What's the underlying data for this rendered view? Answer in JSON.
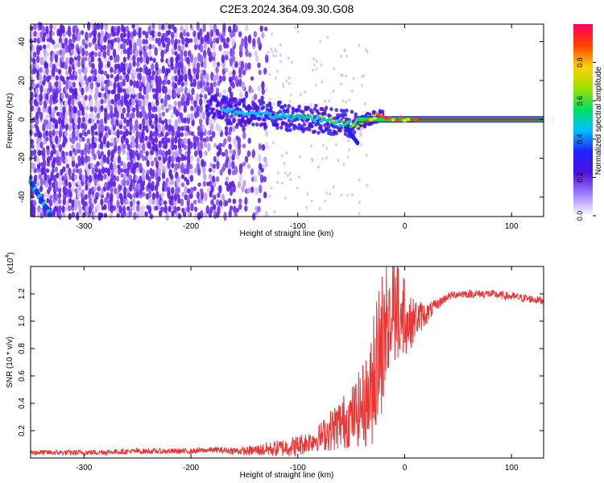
{
  "figure_title": "C2E3.2024.364.09.30.G08",
  "colors": {
    "snr_line": "#ee3333",
    "spectrogram_noise": "#5a17e6",
    "colormap": [
      "#ffffff",
      "#a080ff",
      "#5010e0",
      "#2020ff",
      "#00c0ff",
      "#00e060",
      "#a0e000",
      "#ffd000",
      "#ff4000",
      "#ff0060"
    ]
  },
  "chart_data": [
    {
      "type": "heatmap",
      "title": "C2E3.2024.364.09.30.G08",
      "xlabel": "Height of straight line (km)",
      "ylabel": "Frequency (Hz)",
      "xlim": [
        -350,
        130
      ],
      "ylim": [
        -50,
        49
      ],
      "x_ticks": [
        -300,
        -200,
        -100,
        0,
        100
      ],
      "y_ticks": [
        -40,
        -20,
        0,
        20,
        40
      ],
      "colorbar": {
        "label": "Normalized spectral amplitude",
        "range": [
          0,
          1
        ],
        "ticks": [
          "0.0",
          "0.2",
          "0.4",
          "0.6",
          "0.8"
        ],
        "tick_values": [
          0.0,
          0.2,
          0.4,
          0.6,
          0.8
        ]
      },
      "signal_track": {
        "height_km": [
          -185,
          -160,
          -140,
          -120,
          -100,
          -80,
          -60,
          -45,
          -35,
          -25,
          -15,
          0,
          20,
          50,
          130
        ],
        "frequency_hz": [
          7,
          4,
          3,
          2,
          1,
          0,
          -2,
          -3,
          0,
          2,
          1,
          0,
          0,
          0,
          0
        ],
        "amplitude": [
          0.3,
          0.35,
          0.4,
          0.45,
          0.45,
          0.5,
          0.5,
          0.6,
          0.9,
          0.95,
          0.95,
          1.0,
          1.0,
          1.0,
          1.0
        ]
      },
      "noise_region_km": [
        -350,
        -130
      ]
    },
    {
      "type": "line",
      "xlabel": "Height of straight line (km)",
      "ylabel": "SNR (10 * v/v)",
      "scale_label": "(x10",
      "scale_exponent": "4",
      "xlim": [
        -350,
        130
      ],
      "ylim": [
        0,
        1.4
      ],
      "x_ticks": [
        -300,
        -200,
        -100,
        0,
        100
      ],
      "y_ticks": [
        0.2,
        0.4,
        0.6,
        0.8,
        1.0,
        1.2
      ],
      "series": [
        {
          "x": [
            -350,
            -300,
            -250,
            -200,
            -180,
            -150,
            -120,
            -100,
            -90,
            -80,
            -70,
            -60,
            -50,
            -40,
            -35,
            -30,
            -25,
            -20,
            -15,
            -10,
            -5,
            0,
            5,
            10,
            20,
            30,
            40,
            50,
            60,
            80,
            100,
            120,
            130
          ],
          "values": [
            0.04,
            0.04,
            0.05,
            0.05,
            0.06,
            0.05,
            0.07,
            0.09,
            0.12,
            0.15,
            0.2,
            0.25,
            0.3,
            0.38,
            0.42,
            0.5,
            0.65,
            0.82,
            0.95,
            1.0,
            1.02,
            1.0,
            0.98,
            1.02,
            1.05,
            1.12,
            1.18,
            1.2,
            1.2,
            1.2,
            1.18,
            1.16,
            1.15
          ],
          "spread": [
            0.02,
            0.02,
            0.02,
            0.02,
            0.02,
            0.03,
            0.06,
            0.08,
            0.08,
            0.1,
            0.15,
            0.2,
            0.22,
            0.3,
            0.35,
            0.42,
            0.45,
            0.45,
            0.42,
            0.35,
            0.3,
            0.25,
            0.2,
            0.15,
            0.08,
            0.04,
            0.03,
            0.03,
            0.03,
            0.03,
            0.03,
            0.03,
            0.03
          ]
        }
      ]
    }
  ]
}
